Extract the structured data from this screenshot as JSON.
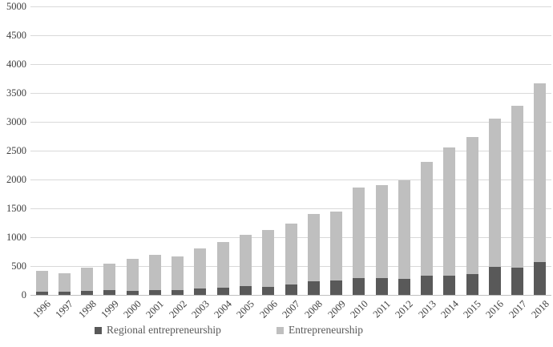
{
  "chart_data": {
    "type": "bar",
    "stacked": true,
    "title": "",
    "xlabel": "",
    "ylabel": "",
    "ylim": [
      0,
      5000
    ],
    "ytick_step": 500,
    "grid": true,
    "legend_position": "bottom",
    "categories": [
      "1996",
      "1997",
      "1998",
      "1999",
      "2000",
      "2001",
      "2002",
      "2003",
      "2004",
      "2005",
      "2006",
      "2007",
      "2008",
      "2009",
      "2010",
      "2011",
      "2012",
      "2013",
      "2014",
      "2015",
      "2016",
      "2017",
      "2018"
    ],
    "series": [
      {
        "name": "Regional entrepreneurship",
        "color": "#595959",
        "values": [
          55,
          55,
          70,
          80,
          75,
          90,
          85,
          105,
          120,
          155,
          145,
          175,
          235,
          245,
          290,
          295,
          280,
          340,
          340,
          360,
          480,
          475,
          570
        ]
      },
      {
        "name": "Entrepreneurship",
        "color": "#bfbfbf",
        "values": [
          360,
          325,
          400,
          460,
          545,
          600,
          585,
          700,
          800,
          890,
          975,
          1065,
          1165,
          1205,
          1570,
          1605,
          1700,
          1960,
          2220,
          2370,
          2580,
          2805,
          3100
        ]
      }
    ],
    "stacked_totals": [
      415,
      380,
      470,
      540,
      620,
      690,
      670,
      805,
      920,
      1045,
      1120,
      1240,
      1400,
      1450,
      1860,
      1900,
      1980,
      2300,
      2560,
      2730,
      3060,
      3280,
      3670
    ]
  },
  "colors": {
    "gridline": "#d9d9d9",
    "axis_line": "#bfbfbf",
    "tick_text": "#3d3d3d",
    "legend_text": "#595959"
  }
}
